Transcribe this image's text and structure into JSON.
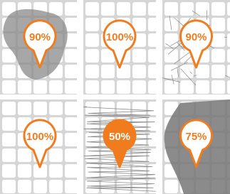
{
  "panels": [
    {
      "label": "90%"
    },
    {
      "label": "100%"
    },
    {
      "label": "90%"
    },
    {
      "label": "100%"
    },
    {
      "label": "50%"
    },
    {
      "label": "75%"
    }
  ]
}
